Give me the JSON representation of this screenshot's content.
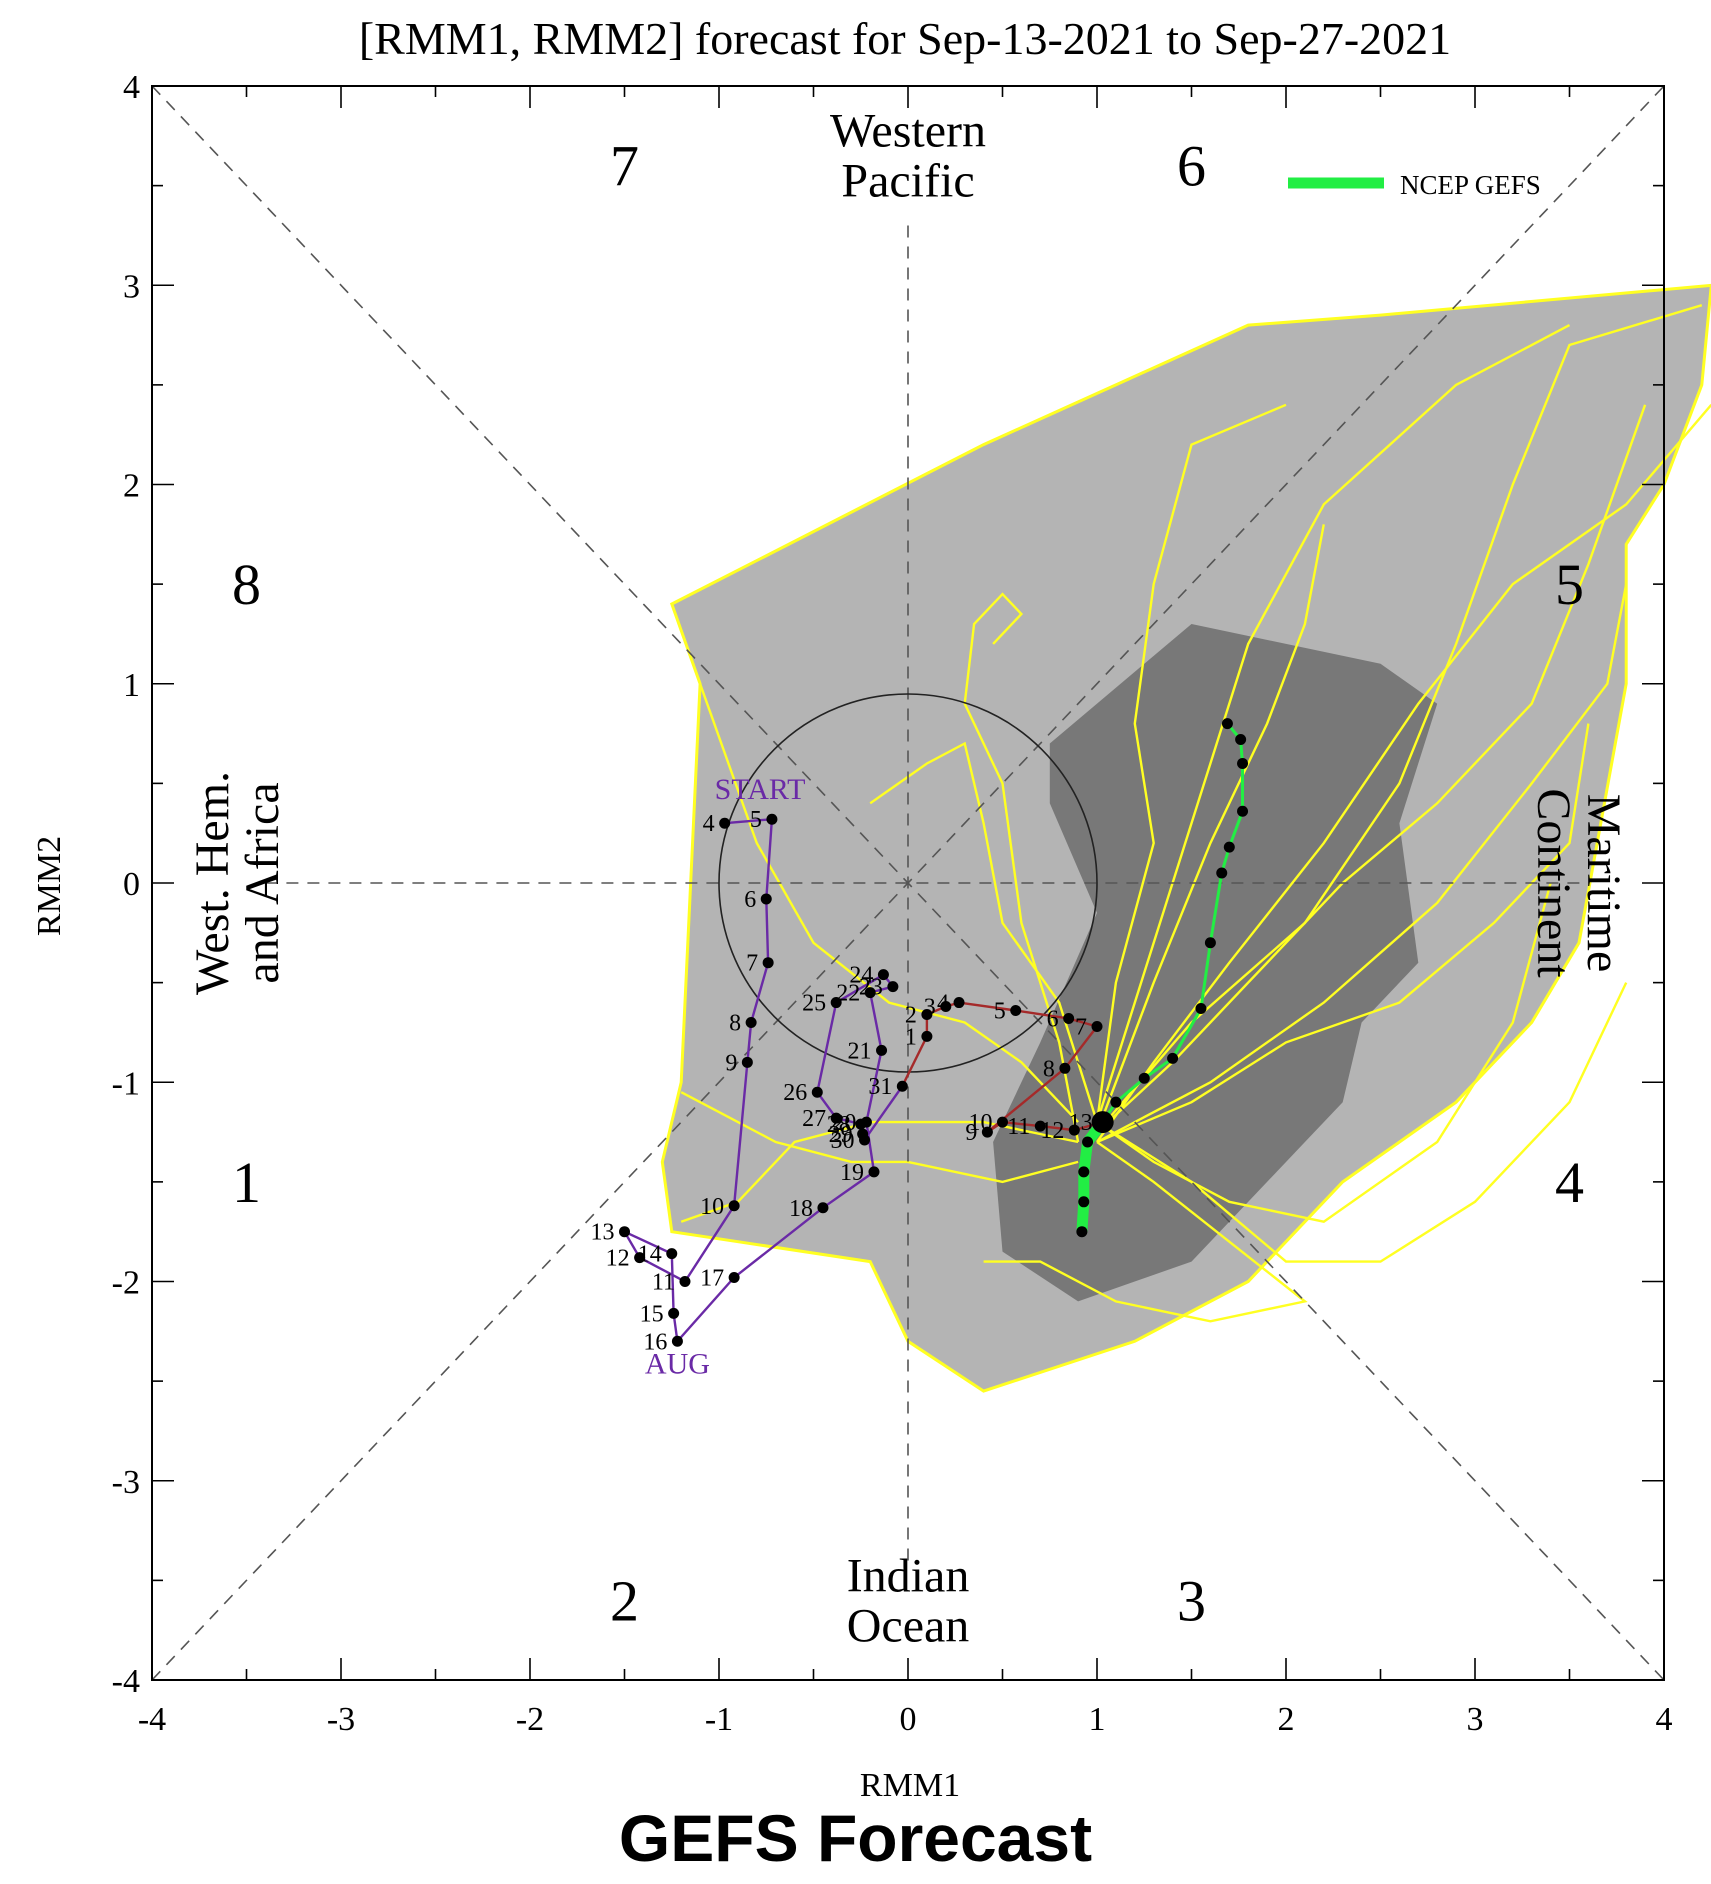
{
  "caption": "GEFS Forecast",
  "chart_data": {
    "type": "line",
    "subtype": "RMM phase-space diagram (Wheeler-Hendon MJO)",
    "title": "[RMM1, RMM2] forecast for Sep-13-2021 to Sep-27-2021",
    "xlabel": "RMM1",
    "ylabel": "RMM2",
    "xlim": [
      -4,
      4
    ],
    "ylim": [
      -4,
      4
    ],
    "x_ticks": [
      -4,
      -3,
      -2,
      -1,
      0,
      1,
      2,
      3,
      4
    ],
    "y_ticks": [
      -4,
      -3,
      -2,
      -1,
      0,
      1,
      2,
      3,
      4
    ],
    "grid": false,
    "unit_circle_radius": 1,
    "phase_labels": [
      {
        "text": "1",
        "x": -3.5,
        "y": -1.5
      },
      {
        "text": "2",
        "x": -1.5,
        "y": -3.6
      },
      {
        "text": "3",
        "x": 1.5,
        "y": -3.6
      },
      {
        "text": "4",
        "x": 3.5,
        "y": -1.5
      },
      {
        "text": "5",
        "x": 3.5,
        "y": 1.5
      },
      {
        "text": "6",
        "x": 1.5,
        "y": 3.6
      },
      {
        "text": "7",
        "x": -1.5,
        "y": 3.6
      },
      {
        "text": "8",
        "x": -3.5,
        "y": 1.5
      }
    ],
    "region_labels": [
      {
        "text": "Western\nPacific",
        "x": 0,
        "y": 3.65
      },
      {
        "text": "Indian\nOcean",
        "x": 0,
        "y": -3.6
      },
      {
        "text": "West. Hem.\nand Africa",
        "x": -3.55,
        "y": 0,
        "rotate": -90
      },
      {
        "text": "Maritime\nContinent",
        "x": 3.55,
        "y": 0,
        "rotate": 90
      }
    ],
    "legend": {
      "position": "top-right",
      "entries": [
        {
          "name": "NCEP GEFS",
          "color": "#22ee44"
        }
      ]
    },
    "colors": {
      "ensemble": "#ffff22",
      "outer_spread": "#b4b4b4",
      "inner_spread": "#787878",
      "august": "#6a2aa6",
      "september": "#a52a2a",
      "gefs_mean": "#22ee44"
    },
    "outer_spread_polygon": [
      [
        -1.25,
        1.4
      ],
      [
        0.4,
        2.2
      ],
      [
        1.8,
        2.8
      ],
      [
        2.5,
        2.85
      ],
      [
        4.25,
        3.0
      ],
      [
        4.2,
        2.5
      ],
      [
        4.0,
        2.0
      ],
      [
        3.8,
        1.7
      ],
      [
        3.8,
        1.0
      ],
      [
        3.55,
        -0.3
      ],
      [
        3.3,
        -0.7
      ],
      [
        2.9,
        -1.1
      ],
      [
        2.3,
        -1.5
      ],
      [
        1.8,
        -2.0
      ],
      [
        1.2,
        -2.3
      ],
      [
        0.4,
        -2.55
      ],
      [
        0.0,
        -2.3
      ],
      [
        -0.2,
        -1.9
      ],
      [
        -0.9,
        -1.8
      ],
      [
        -1.25,
        -1.75
      ],
      [
        -1.3,
        -1.4
      ],
      [
        -1.2,
        -1.0
      ],
      [
        -1.1,
        1.0
      ]
    ],
    "inner_spread_polygon": [
      [
        0.75,
        0.7
      ],
      [
        1.5,
        1.3
      ],
      [
        2.5,
        1.1
      ],
      [
        2.8,
        0.9
      ],
      [
        2.6,
        0.3
      ],
      [
        2.7,
        -0.4
      ],
      [
        2.4,
        -0.7
      ],
      [
        2.3,
        -1.1
      ],
      [
        1.9,
        -1.5
      ],
      [
        1.5,
        -1.9
      ],
      [
        0.9,
        -2.1
      ],
      [
        0.5,
        -1.85
      ],
      [
        0.45,
        -1.3
      ],
      [
        0.7,
        -0.8
      ],
      [
        1.0,
        -0.15
      ],
      [
        0.75,
        0.4
      ]
    ],
    "observed_august": {
      "name": "AUG",
      "start_label": "START",
      "points": [
        {
          "day": "4",
          "x": -0.97,
          "y": 0.3
        },
        {
          "day": "5",
          "x": -0.72,
          "y": 0.32
        },
        {
          "day": "6",
          "x": -0.75,
          "y": -0.08
        },
        {
          "day": "7",
          "x": -0.74,
          "y": -0.4
        },
        {
          "day": "8",
          "x": -0.83,
          "y": -0.7
        },
        {
          "day": "9",
          "x": -0.85,
          "y": -0.9
        },
        {
          "day": "10",
          "x": -0.92,
          "y": -1.62
        },
        {
          "day": "11",
          "x": -1.18,
          "y": -2.0
        },
        {
          "day": "12",
          "x": -1.42,
          "y": -1.88
        },
        {
          "day": "13",
          "x": -1.5,
          "y": -1.75
        },
        {
          "day": "14",
          "x": -1.25,
          "y": -1.86
        },
        {
          "day": "15",
          "x": -1.24,
          "y": -2.16
        },
        {
          "day": "16",
          "x": -1.22,
          "y": -2.3
        },
        {
          "day": "17",
          "x": -0.92,
          "y": -1.98
        },
        {
          "day": "18",
          "x": -0.45,
          "y": -1.63
        },
        {
          "day": "19",
          "x": -0.18,
          "y": -1.45
        },
        {
          "day": "20",
          "x": -0.22,
          "y": -1.2
        },
        {
          "day": "21",
          "x": -0.14,
          "y": -0.84
        },
        {
          "day": "22",
          "x": -0.2,
          "y": -0.55
        },
        {
          "day": "23",
          "x": -0.08,
          "y": -0.52
        },
        {
          "day": "24",
          "x": -0.13,
          "y": -0.46
        },
        {
          "day": "25",
          "x": -0.38,
          "y": -0.6
        },
        {
          "day": "26",
          "x": -0.48,
          "y": -1.05
        },
        {
          "day": "27",
          "x": -0.38,
          "y": -1.18
        },
        {
          "day": "28",
          "x": -0.25,
          "y": -1.21
        },
        {
          "day": "29",
          "x": -0.24,
          "y": -1.26
        },
        {
          "day": "30",
          "x": -0.23,
          "y": -1.29
        },
        {
          "day": "31",
          "x": -0.03,
          "y": -1.02
        }
      ]
    },
    "observed_september": {
      "points": [
        {
          "day": "1",
          "x": 0.1,
          "y": -0.77
        },
        {
          "day": "2",
          "x": 0.1,
          "y": -0.66
        },
        {
          "day": "3",
          "x": 0.2,
          "y": -0.62
        },
        {
          "day": "4",
          "x": 0.27,
          "y": -0.6
        },
        {
          "day": "5",
          "x": 0.57,
          "y": -0.64
        },
        {
          "day": "6",
          "x": 0.85,
          "y": -0.68
        },
        {
          "day": "7",
          "x": 1.0,
          "y": -0.72
        },
        {
          "day": "8",
          "x": 0.83,
          "y": -0.93
        },
        {
          "day": "9",
          "x": 0.42,
          "y": -1.25
        },
        {
          "day": "10",
          "x": 0.5,
          "y": -1.2
        },
        {
          "day": "11",
          "x": 0.7,
          "y": -1.22
        },
        {
          "day": "12",
          "x": 0.88,
          "y": -1.24
        },
        {
          "day": "13",
          "x": 1.03,
          "y": -1.2
        }
      ]
    },
    "gefs_mean": {
      "name": "NCEP GEFS",
      "near_term_points": [
        [
          0.95,
          -1.3
        ],
        [
          0.93,
          -1.45
        ],
        [
          0.93,
          -1.6
        ],
        [
          0.92,
          -1.75
        ]
      ],
      "points": [
        [
          1.03,
          -1.2
        ],
        [
          1.1,
          -1.1
        ],
        [
          1.25,
          -0.98
        ],
        [
          1.4,
          -0.88
        ],
        [
          1.55,
          -0.63
        ],
        [
          1.6,
          -0.3
        ],
        [
          1.66,
          0.05
        ],
        [
          1.7,
          0.18
        ],
        [
          1.77,
          0.36
        ],
        [
          1.77,
          0.6
        ],
        [
          1.76,
          0.72
        ],
        [
          1.69,
          0.8
        ]
      ]
    },
    "ensemble_members": [
      [
        [
          1.0,
          -1.3
        ],
        [
          1.3,
          -0.9
        ],
        [
          1.7,
          -0.4
        ],
        [
          2.2,
          0.2
        ],
        [
          2.7,
          0.9
        ],
        [
          3.2,
          1.5
        ],
        [
          3.8,
          1.9
        ],
        [
          4.25,
          2.4
        ]
      ],
      [
        [
          1.0,
          -1.25
        ],
        [
          1.4,
          -0.9
        ],
        [
          1.8,
          -0.5
        ],
        [
          2.3,
          0.0
        ],
        [
          2.8,
          0.4
        ],
        [
          3.3,
          0.9
        ],
        [
          3.6,
          1.6
        ],
        [
          3.9,
          2.4
        ]
      ],
      [
        [
          1.0,
          -1.25
        ],
        [
          1.5,
          -0.7
        ],
        [
          2.1,
          -0.2
        ],
        [
          2.6,
          0.5
        ],
        [
          2.9,
          1.2
        ],
        [
          3.2,
          2.0
        ],
        [
          3.5,
          2.7
        ],
        [
          4.2,
          2.9
        ]
      ],
      [
        [
          1.0,
          -1.3
        ],
        [
          1.6,
          -1.0
        ],
        [
          2.2,
          -0.6
        ],
        [
          2.8,
          -0.1
        ],
        [
          3.3,
          0.5
        ],
        [
          3.7,
          1.0
        ],
        [
          3.8,
          1.5
        ]
      ],
      [
        [
          1.0,
          -1.2
        ],
        [
          1.2,
          -0.6
        ],
        [
          1.4,
          0.0
        ],
        [
          1.6,
          0.6
        ],
        [
          1.8,
          1.2
        ],
        [
          2.2,
          1.9
        ],
        [
          2.9,
          2.5
        ],
        [
          3.5,
          2.8
        ]
      ],
      [
        [
          1.0,
          -1.2
        ],
        [
          1.1,
          -0.5
        ],
        [
          1.3,
          0.2
        ],
        [
          1.2,
          0.8
        ],
        [
          1.3,
          1.5
        ],
        [
          1.5,
          2.2
        ],
        [
          2.0,
          2.4
        ]
      ],
      [
        [
          0.9,
          -1.3
        ],
        [
          0.8,
          -0.8
        ],
        [
          0.6,
          -0.2
        ],
        [
          0.5,
          0.5
        ],
        [
          0.3,
          0.9
        ],
        [
          0.35,
          1.3
        ],
        [
          0.5,
          1.45
        ],
        [
          0.6,
          1.35
        ],
        [
          0.45,
          1.2
        ]
      ],
      [
        [
          1.0,
          -1.2
        ],
        [
          1.3,
          -1.4
        ],
        [
          1.7,
          -1.6
        ],
        [
          2.2,
          -1.7
        ],
        [
          2.8,
          -1.3
        ],
        [
          3.2,
          -0.7
        ],
        [
          3.4,
          0.0
        ]
      ],
      [
        [
          1.0,
          -1.3
        ],
        [
          1.5,
          -1.1
        ],
        [
          2.0,
          -0.8
        ],
        [
          2.6,
          -0.6
        ],
        [
          3.1,
          -0.2
        ],
        [
          3.5,
          0.2
        ],
        [
          3.6,
          0.8
        ]
      ],
      [
        [
          0.9,
          -1.4
        ],
        [
          0.5,
          -1.5
        ],
        [
          0.0,
          -1.4
        ],
        [
          -0.3,
          -1.4
        ],
        [
          -0.7,
          -1.3
        ],
        [
          -1.0,
          -1.15
        ],
        [
          -1.2,
          -1.05
        ]
      ],
      [
        [
          0.9,
          -1.2
        ],
        [
          0.6,
          -0.9
        ],
        [
          0.3,
          -0.7
        ],
        [
          -0.1,
          -0.6
        ],
        [
          -0.5,
          -0.3
        ],
        [
          -0.8,
          0.2
        ],
        [
          -1.1,
          1.0
        ],
        [
          -1.25,
          1.4
        ]
      ],
      [
        [
          0.9,
          -1.3
        ],
        [
          0.4,
          -1.2
        ],
        [
          -0.2,
          -1.2
        ],
        [
          -0.6,
          -1.3
        ],
        [
          -0.9,
          -1.6
        ],
        [
          -1.2,
          -1.7
        ]
      ],
      [
        [
          1.0,
          -1.2
        ],
        [
          1.5,
          -1.5
        ],
        [
          2.0,
          -1.9
        ],
        [
          2.5,
          -1.9
        ],
        [
          3.0,
          -1.6
        ],
        [
          3.5,
          -1.1
        ],
        [
          3.8,
          -0.5
        ]
      ],
      [
        [
          1.0,
          -1.3
        ],
        [
          1.3,
          -1.5
        ],
        [
          1.7,
          -1.8
        ],
        [
          2.1,
          -2.1
        ],
        [
          1.6,
          -2.2
        ],
        [
          1.1,
          -2.1
        ],
        [
          0.7,
          -1.9
        ],
        [
          0.4,
          -1.9
        ]
      ],
      [
        [
          1.0,
          -1.2
        ],
        [
          0.8,
          -0.6
        ],
        [
          0.5,
          -0.2
        ],
        [
          0.4,
          0.3
        ],
        [
          0.3,
          0.7
        ],
        [
          0.1,
          0.6
        ],
        [
          -0.2,
          0.4
        ]
      ],
      [
        [
          1.0,
          -1.25
        ],
        [
          1.3,
          -0.5
        ],
        [
          1.6,
          0.2
        ],
        [
          1.9,
          0.8
        ],
        [
          2.1,
          1.3
        ],
        [
          2.2,
          1.8
        ]
      ]
    ]
  }
}
